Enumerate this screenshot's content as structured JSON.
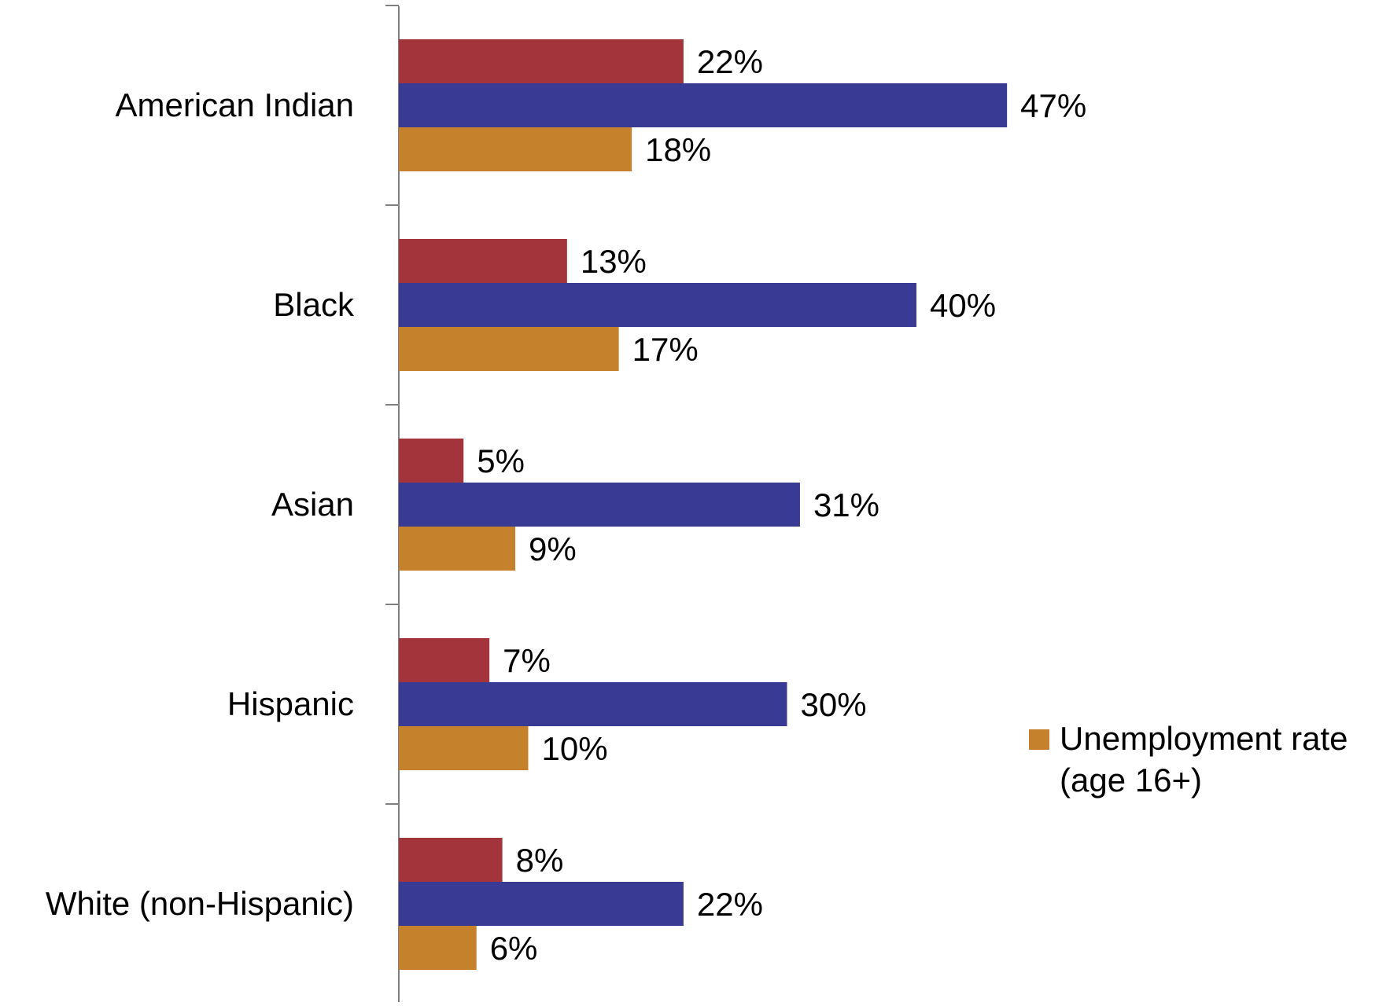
{
  "chart_data": {
    "type": "bar",
    "orientation": "horizontal",
    "categories": [
      "American Indian",
      "Black",
      "Asian",
      "Hispanic",
      "White (non-Hispanic)"
    ],
    "series": [
      {
        "values": [
          22,
          13,
          5,
          7,
          8
        ],
        "labels": [
          "22%",
          "13%",
          "5%",
          "7%",
          "8%"
        ],
        "color": "#A4343C"
      },
      {
        "values": [
          47,
          40,
          31,
          30,
          22
        ],
        "labels": [
          "47%",
          "40%",
          "31%",
          "30%",
          "22%"
        ],
        "color": "#393A94"
      },
      {
        "name": "Unemployment rate (age 16+)",
        "values": [
          18,
          17,
          9,
          10,
          6
        ],
        "labels": [
          "18%",
          "17%",
          "9%",
          "10%",
          "6%"
        ],
        "color": "#C5812C"
      }
    ],
    "legend": {
      "entries": [
        {
          "series_index": 2,
          "lines": [
            "Unemployment rate",
            "(age 16+)"
          ]
        }
      ],
      "placement": "right"
    },
    "value_unit": "%",
    "xlim": [
      0,
      60
    ],
    "grid": false,
    "axis_color": "#808080"
  }
}
